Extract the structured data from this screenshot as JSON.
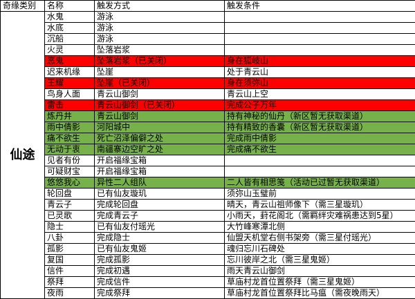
{
  "table": {
    "header": [
      "奇缘类别",
      "名称",
      "触发方式",
      "触发条件"
    ],
    "category": "仙途",
    "rows": [
      {
        "cells": [
          "水鬼",
          "游泳"
        ]
      },
      {
        "cells": [
          "水底",
          "游泳"
        ]
      },
      {
        "cells": [
          "沉船",
          "游泳"
        ]
      },
      {
        "cells": [
          "火灵",
          "坠落岩浆"
        ]
      },
      {
        "cells": [
          "恶鬼",
          "坠落岩浆（已关闭）",
          "身在狐岐山"
        ],
        "color": "#ff0000"
      },
      {
        "cells": [
          "迟来机缘",
          "坠崖",
          "处于青云山"
        ]
      },
      {
        "cells": [
          "王耀",
          "坠崖（已关闭）",
          "身在须弥山"
        ],
        "color": "#ff0000"
      },
      {
        "cells": [
          "鸟身人面",
          "青云山御剑",
          "青云山上空"
        ]
      },
      {
        "cells": [
          "雷击",
          "青云山御剑（已关闭）",
          "完成公子万年"
        ],
        "color": "#ff0000"
      },
      {
        "cells": [
          "炼丹井",
          "青云山御剑",
          "持有神秘的仙丹（新区暂无获取渠道）"
        ],
        "color": "#77b14a"
      },
      {
        "cells": [
          "雨中倩影",
          "河阳城中",
          "持有精致的香囊（新区暂无获取渠道）"
        ],
        "color": "#77b14a"
      },
      {
        "cells": [
          "痛不欲生",
          "死亡沼泽偏僻之处",
          "完成雨中倩影"
        ],
        "color": "#77b14a"
      },
      {
        "cells": [
          "无动于衷",
          "南疆寨边空旷之处",
          "完成痛不欲生"
        ],
        "color": "#77b14a"
      },
      {
        "cells": [
          "见者有份",
          "开启福缘宝箱"
        ]
      },
      {
        "cells": [
          "可疑财宝",
          "开启福缘宝箱"
        ]
      },
      {
        "cells": [
          "悠悠我心",
          "异性二人组队",
          "二人皆有相思笺（活动已过暂无获取渠道）"
        ],
        "color": "#77b14a"
      },
      {
        "cells": [
          "轮回盘",
          "已有仙友璇玑",
          "须弥山玉璧前"
        ]
      },
      {
        "cells": [
          "青云子",
          "完成轮回盘",
          "晴天，青云山祖师像下（需三星璇玑）"
        ]
      },
      {
        "cells": [
          "已灵歌",
          "完成青云子",
          "小雨天，葑花阁北（需羁绊灾难祸患达到5星）"
        ]
      },
      {
        "cells": [
          "隐士",
          "已有仙友付瑶光",
          "大竹峰寒潭北侧"
        ]
      },
      {
        "cells": [
          "八卦",
          "完成隐士",
          "仙盟天机堂右侧书架旁（需三星付瑶光）"
        ]
      },
      {
        "cells": [
          "孤影",
          "已有仙友鬼姬",
          "魂归忘川石碑处"
        ]
      },
      {
        "cells": [
          "复国",
          "完成孤影",
          "忘川彼岸之北（需三星鬼姬）"
        ]
      },
      {
        "cells": [
          "信件",
          "完成初遇",
          "雨天青云山御剑"
        ]
      },
      {
        "cells": [
          "祭拜",
          "完成信件",
          "草庙村龙首位置祭拜（需三星鬼姬）"
        ]
      },
      {
        "cells": [
          "夜雨",
          "完成祭拜",
          "草庙村龙首位置祭拜比马瘟（需夜晚雨天）"
        ]
      }
    ]
  }
}
